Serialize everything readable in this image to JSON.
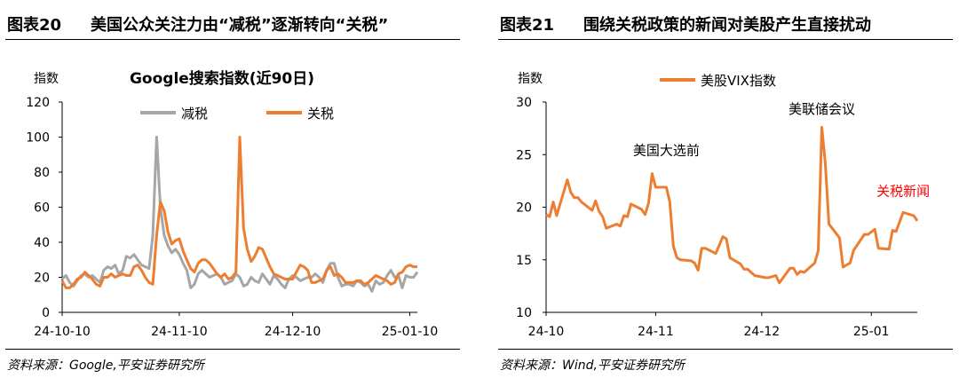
{
  "panels": [
    {
      "figure_no": "图表20",
      "heading": "美国公众关注力由“减税”逐渐转向“关税”",
      "source": "资料来源：Google,平安证券研究所"
    },
    {
      "figure_no": "图表21",
      "heading": "围绕关税政策的新闻对美股产生直接扰动",
      "source": "资料来源：Wind,平安证券研究所"
    }
  ],
  "colors": {
    "gray": "#a6a6a6",
    "orange": "#ed7d31",
    "red": "#ff0000",
    "axis": "#000000"
  },
  "chart_data": [
    {
      "type": "line",
      "title": "Google搜索指数(近90日)",
      "ylabel": "指数",
      "xlabel": "",
      "ylim": [
        0,
        120
      ],
      "yticks": [
        0,
        20,
        40,
        60,
        80,
        100,
        120
      ],
      "xticklabels": [
        "24-10-10",
        "24-11-10",
        "24-12-10",
        "25-01-10"
      ],
      "x": [
        "2024-10-10",
        "2024-10-11",
        "2024-10-12",
        "2024-10-13",
        "2024-10-14",
        "2024-10-15",
        "2024-10-16",
        "2024-10-17",
        "2024-10-18",
        "2024-10-19",
        "2024-10-20",
        "2024-10-21",
        "2024-10-22",
        "2024-10-23",
        "2024-10-24",
        "2024-10-25",
        "2024-10-26",
        "2024-10-27",
        "2024-10-28",
        "2024-10-29",
        "2024-10-30",
        "2024-10-31",
        "2024-11-01",
        "2024-11-02",
        "2024-11-03",
        "2024-11-04",
        "2024-11-05",
        "2024-11-06",
        "2024-11-07",
        "2024-11-08",
        "2024-11-09",
        "2024-11-10",
        "2024-11-11",
        "2024-11-12",
        "2024-11-13",
        "2024-11-14",
        "2024-11-15",
        "2024-11-16",
        "2024-11-17",
        "2024-11-18",
        "2024-11-19",
        "2024-11-20",
        "2024-11-21",
        "2024-11-22",
        "2024-11-23",
        "2024-11-24",
        "2024-11-25",
        "2024-11-26",
        "2024-11-27",
        "2024-11-28",
        "2024-11-29",
        "2024-11-30",
        "2024-12-01",
        "2024-12-02",
        "2024-12-03",
        "2024-12-04",
        "2024-12-05",
        "2024-12-06",
        "2024-12-07",
        "2024-12-08",
        "2024-12-09",
        "2024-12-10",
        "2024-12-11",
        "2024-12-12",
        "2024-12-13",
        "2024-12-14",
        "2024-12-15",
        "2024-12-16",
        "2024-12-17",
        "2024-12-18",
        "2024-12-19",
        "2024-12-20",
        "2024-12-21",
        "2024-12-22",
        "2024-12-23",
        "2024-12-24",
        "2024-12-25",
        "2024-12-26",
        "2024-12-27",
        "2024-12-28",
        "2024-12-29",
        "2024-12-30",
        "2024-12-31",
        "2025-01-01",
        "2025-01-02",
        "2025-01-03",
        "2025-01-04",
        "2025-01-05",
        "2025-01-06",
        "2025-01-07",
        "2025-01-08",
        "2025-01-09",
        "2025-01-10",
        "2025-01-11",
        "2025-01-12"
      ],
      "series": [
        {
          "name": "减税",
          "color": "#a6a6a6",
          "values": [
            19,
            21,
            17,
            15,
            18,
            21,
            22,
            20,
            21,
            19,
            17,
            24,
            26,
            25,
            27,
            22,
            24,
            32,
            31,
            33,
            30,
            27,
            26,
            25,
            44,
            100,
            60,
            44,
            38,
            34,
            36,
            33,
            28,
            24,
            14,
            16,
            22,
            24,
            22,
            20,
            21,
            22,
            20,
            16,
            17,
            18,
            22,
            20,
            15,
            16,
            20,
            18,
            17,
            22,
            19,
            16,
            21,
            19,
            16,
            14,
            19,
            21,
            20,
            18,
            19,
            20,
            20,
            22,
            20,
            17,
            24,
            28,
            28,
            20,
            15,
            16,
            16,
            15,
            18,
            17,
            15,
            16,
            12,
            18,
            16,
            17,
            21,
            24,
            20,
            21,
            14,
            21,
            20,
            20,
            23
          ]
        },
        {
          "name": "关税",
          "color": "#ed7d31",
          "values": [
            18,
            14,
            14,
            16,
            19,
            20,
            23,
            21,
            19,
            16,
            15,
            20,
            20,
            22,
            20,
            21,
            22,
            21,
            21,
            26,
            27,
            24,
            20,
            17,
            16,
            44,
            63,
            58,
            46,
            39,
            41,
            42,
            35,
            30,
            25,
            23,
            28,
            30,
            30,
            28,
            25,
            22,
            20,
            22,
            19,
            20,
            23,
            100,
            48,
            36,
            29,
            32,
            37,
            36,
            31,
            26,
            22,
            21,
            20,
            19,
            19,
            19,
            23,
            27,
            26,
            24,
            17,
            17,
            18,
            19,
            24,
            26,
            21,
            22,
            20,
            17,
            17,
            17,
            18,
            18,
            16,
            17,
            19,
            21,
            20,
            19,
            18,
            16,
            17,
            22,
            23,
            26,
            27,
            26,
            26
          ]
        }
      ]
    },
    {
      "type": "line",
      "title": "",
      "ylabel": "指数",
      "xlabel": "",
      "ylim": [
        10,
        30
      ],
      "yticks": [
        10,
        15,
        20,
        25,
        30
      ],
      "xticklabels": [
        "24-10",
        "24-11",
        "24-12",
        "25-01"
      ],
      "series": [
        {
          "name": "美股VIX指数",
          "color": "#ed7d31",
          "x": [
            "2024-10-01",
            "2024-10-02",
            "2024-10-03",
            "2024-10-04",
            "2024-10-07",
            "2024-10-08",
            "2024-10-09",
            "2024-10-10",
            "2024-10-11",
            "2024-10-14",
            "2024-10-15",
            "2024-10-16",
            "2024-10-17",
            "2024-10-18",
            "2024-10-21",
            "2024-10-22",
            "2024-10-23",
            "2024-10-24",
            "2024-10-25",
            "2024-10-28",
            "2024-10-29",
            "2024-10-30",
            "2024-10-31",
            "2024-11-01",
            "2024-11-04",
            "2024-11-05",
            "2024-11-06",
            "2024-11-07",
            "2024-11-08",
            "2024-11-11",
            "2024-11-12",
            "2024-11-13",
            "2024-11-14",
            "2024-11-15",
            "2024-11-18",
            "2024-11-19",
            "2024-11-20",
            "2024-11-21",
            "2024-11-22",
            "2024-11-25",
            "2024-11-26",
            "2024-11-27",
            "2024-11-29",
            "2024-12-02",
            "2024-12-03",
            "2024-12-04",
            "2024-12-05",
            "2024-12-06",
            "2024-12-09",
            "2024-12-10",
            "2024-12-11",
            "2024-12-12",
            "2024-12-13",
            "2024-12-16",
            "2024-12-17",
            "2024-12-18",
            "2024-12-19",
            "2024-12-20",
            "2024-12-23",
            "2024-12-24",
            "2024-12-26",
            "2024-12-27",
            "2024-12-30",
            "2024-12-31",
            "2025-01-02",
            "2025-01-03",
            "2025-01-06",
            "2025-01-07",
            "2025-01-08",
            "2025-01-10",
            "2025-01-13",
            "2025-01-14"
          ],
          "values": [
            19.3,
            19.1,
            20.5,
            19.2,
            22.6,
            21.4,
            20.9,
            20.9,
            20.5,
            19.7,
            20.6,
            19.6,
            19.1,
            18.0,
            18.4,
            18.2,
            19.2,
            19.1,
            20.3,
            19.8,
            19.3,
            20.4,
            23.2,
            21.9,
            21.9,
            20.5,
            16.3,
            15.2,
            15.0,
            14.9,
            14.7,
            14.0,
            16.1,
            16.1,
            15.6,
            16.4,
            17.2,
            17.0,
            15.2,
            14.6,
            14.1,
            14.1,
            13.5,
            13.3,
            13.3,
            13.4,
            13.5,
            12.8,
            14.2,
            14.2,
            13.6,
            13.9,
            13.8,
            14.7,
            15.9,
            27.6,
            24.1,
            18.4,
            17.1,
            14.3,
            14.7,
            15.9,
            17.4,
            17.4,
            17.9,
            16.1,
            16.0,
            17.8,
            17.7,
            19.5,
            19.2,
            18.7
          ]
        }
      ],
      "annotations": [
        {
          "text": "美国大选前",
          "x": "2024-11-04",
          "y": 25.0,
          "color": "#000000"
        },
        {
          "text": "美联储会议",
          "x": "2024-12-18",
          "y": 28.9,
          "color": "#000000"
        },
        {
          "text": "关税新闻",
          "x": "2025-01-10",
          "y": 21.1,
          "color": "#ff0000"
        }
      ]
    }
  ]
}
